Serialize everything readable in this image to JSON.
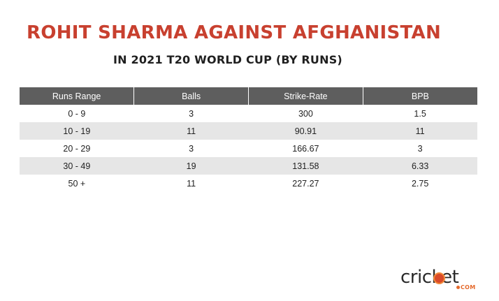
{
  "header": {
    "title": "ROHIT SHARMA AGAINST AFGHANISTAN",
    "subtitle": "IN 2021 T20 WORLD CUP (BY RUNS)"
  },
  "table": {
    "columns": [
      "Runs Range",
      "Balls",
      "Strike-Rate",
      "BPB"
    ],
    "rows": [
      [
        "0 - 9",
        "3",
        "300",
        "1.5"
      ],
      [
        "10 - 19",
        "11",
        "90.91",
        "11"
      ],
      [
        "20 - 29",
        "3",
        "166.67",
        "3"
      ],
      [
        "30 - 49",
        "19",
        "131.58",
        "6.33"
      ],
      [
        "50 +",
        "11",
        "227.27",
        "2.75"
      ]
    ]
  },
  "logo": {
    "word": "cricket",
    "suffix": "COM",
    "colors": {
      "accent": "#e56a2c",
      "title": "#c8402f",
      "header_bg": "#5e5e5e",
      "alt_row": "#e6e6e6"
    }
  }
}
